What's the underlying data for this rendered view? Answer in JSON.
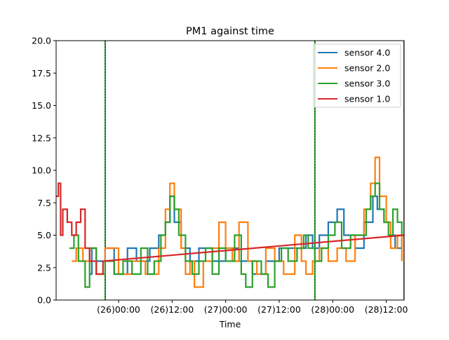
{
  "chart_data": {
    "type": "line",
    "title": "PM1 against  time",
    "xlabel": "Time",
    "ylabel": "",
    "xlim": [
      "2021-11-25 10:00",
      "2021-11-28 16:00"
    ],
    "ylim": [
      0,
      20
    ],
    "x_ticks": [
      {
        "t": "2021-11-26 00:00",
        "label": "(26)00:00"
      },
      {
        "t": "2021-11-26 12:00",
        "label": "(26)12:00"
      },
      {
        "t": "2021-11-27 00:00",
        "label": "(27)00:00"
      },
      {
        "t": "2021-11-27 12:00",
        "label": "(27)12:00"
      },
      {
        "t": "2021-11-28 00:00",
        "label": "(28)00:00"
      },
      {
        "t": "2021-11-28 12:00",
        "label": "(28)12:00"
      }
    ],
    "y_ticks": [
      {
        "v": 0,
        "label": "0.0"
      },
      {
        "v": 2.5,
        "label": "2.5"
      },
      {
        "v": 5,
        "label": "5.0"
      },
      {
        "v": 7.5,
        "label": "7.5"
      },
      {
        "v": 10,
        "label": "10.0"
      },
      {
        "v": 12.5,
        "label": "12.5"
      },
      {
        "v": 15,
        "label": "15.0"
      },
      {
        "v": 17.5,
        "label": "17.5"
      },
      {
        "v": 20,
        "label": "20.0"
      }
    ],
    "grid": false,
    "legend_position": "top-right",
    "series": [
      {
        "name": "sensor 4.0",
        "color": "#1f77b4",
        "points": [
          [
            "2021-11-25 17:30",
            2
          ],
          [
            "2021-11-25 18:00",
            4
          ],
          [
            "2021-11-25 19:00",
            3
          ],
          [
            "2021-11-25 21:00",
            4
          ],
          [
            "2021-11-25 23:00",
            2
          ],
          [
            "2021-11-26 02:00",
            4
          ],
          [
            "2021-11-26 04:00",
            3
          ],
          [
            "2021-11-26 07:00",
            4
          ],
          [
            "2021-11-26 09:00",
            5
          ],
          [
            "2021-11-26 10:30",
            6
          ],
          [
            "2021-11-26 11:30",
            8
          ],
          [
            "2021-11-26 12:30",
            6
          ],
          [
            "2021-11-26 14:00",
            4
          ],
          [
            "2021-11-26 16:00",
            3
          ],
          [
            "2021-11-26 18:00",
            4
          ],
          [
            "2021-11-26 21:00",
            3
          ],
          [
            "2021-11-27 00:00",
            4
          ],
          [
            "2021-11-27 03:00",
            3
          ],
          [
            "2021-11-27 06:00",
            2
          ],
          [
            "2021-11-27 09:00",
            3
          ],
          [
            "2021-11-27 12:00",
            4
          ],
          [
            "2021-11-27 15:00",
            4
          ],
          [
            "2021-11-27 18:00",
            5
          ],
          [
            "2021-11-27 19:30",
            4
          ],
          [
            "2021-11-27 21:00",
            5
          ],
          [
            "2021-11-27 23:00",
            6
          ],
          [
            "2021-11-28 01:00",
            7
          ],
          [
            "2021-11-28 02:30",
            5
          ],
          [
            "2021-11-28 05:00",
            4
          ],
          [
            "2021-11-28 07:00",
            6
          ],
          [
            "2021-11-28 09:00",
            8
          ],
          [
            "2021-11-28 10:00",
            7
          ],
          [
            "2021-11-28 11:30",
            6
          ],
          [
            "2021-11-28 13:00",
            5
          ],
          [
            "2021-11-28 14:00",
            4
          ],
          [
            "2021-11-28 15:30",
            5
          ]
        ]
      },
      {
        "name": "sensor 2.0",
        "color": "#ff7f0e",
        "points": [
          [
            "2021-11-25 13:30",
            3
          ],
          [
            "2021-11-25 14:30",
            4
          ],
          [
            "2021-11-25 16:00",
            3
          ],
          [
            "2021-11-25 17:30",
            4
          ],
          [
            "2021-11-25 19:00",
            2
          ],
          [
            "2021-11-25 21:00",
            4
          ],
          [
            "2021-11-26 00:00",
            2
          ],
          [
            "2021-11-26 03:00",
            3
          ],
          [
            "2021-11-26 06:00",
            2
          ],
          [
            "2021-11-26 09:00",
            4
          ],
          [
            "2021-11-26 10:30",
            7
          ],
          [
            "2021-11-26 11:30",
            9
          ],
          [
            "2021-11-26 12:30",
            7
          ],
          [
            "2021-11-26 14:00",
            4
          ],
          [
            "2021-11-26 15:00",
            2
          ],
          [
            "2021-11-26 16:00",
            3
          ],
          [
            "2021-11-26 17:00",
            1
          ],
          [
            "2021-11-26 19:00",
            3
          ],
          [
            "2021-11-26 21:00",
            4
          ],
          [
            "2021-11-26 22:30",
            6
          ],
          [
            "2021-11-27 00:00",
            4
          ],
          [
            "2021-11-27 01:30",
            3
          ],
          [
            "2021-11-27 03:00",
            6
          ],
          [
            "2021-11-27 05:00",
            3
          ],
          [
            "2021-11-27 07:00",
            2
          ],
          [
            "2021-11-27 09:00",
            4
          ],
          [
            "2021-11-27 11:00",
            3
          ],
          [
            "2021-11-27 13:00",
            2
          ],
          [
            "2021-11-27 15:30",
            5
          ],
          [
            "2021-11-27 17:00",
            3
          ],
          [
            "2021-11-27 18:00",
            2
          ],
          [
            "2021-11-27 19:30",
            3
          ],
          [
            "2021-11-27 21:00",
            4
          ],
          [
            "2021-11-27 23:00",
            3
          ],
          [
            "2021-11-28 01:00",
            4
          ],
          [
            "2021-11-28 03:00",
            3
          ],
          [
            "2021-11-28 05:00",
            5
          ],
          [
            "2021-11-28 07:00",
            7
          ],
          [
            "2021-11-28 08:30",
            9
          ],
          [
            "2021-11-28 09:30",
            11
          ],
          [
            "2021-11-28 10:30",
            8
          ],
          [
            "2021-11-28 12:00",
            6
          ],
          [
            "2021-11-28 13:00",
            4
          ],
          [
            "2021-11-28 14:30",
            5
          ],
          [
            "2021-11-28 15:30",
            3
          ]
        ]
      },
      {
        "name": "sensor 3.0",
        "color": "#2ca02c",
        "points": [
          [
            "2021-11-25 13:00",
            4
          ],
          [
            "2021-11-25 14:00",
            5
          ],
          [
            "2021-11-25 15:00",
            3
          ],
          [
            "2021-11-25 16:30",
            1
          ],
          [
            "2021-11-25 17:30",
            4
          ],
          [
            "2021-11-25 19:00",
            2
          ],
          [
            "2021-11-25 21:00",
            3
          ],
          [
            "2021-11-25 23:00",
            2
          ],
          [
            "2021-11-26 01:00",
            3
          ],
          [
            "2021-11-26 03:00",
            2
          ],
          [
            "2021-11-26 05:00",
            4
          ],
          [
            "2021-11-26 06:30",
            2
          ],
          [
            "2021-11-26 08:00",
            3
          ],
          [
            "2021-11-26 09:30",
            5
          ],
          [
            "2021-11-26 10:30",
            6
          ],
          [
            "2021-11-26 11:30",
            8
          ],
          [
            "2021-11-26 12:30",
            7
          ],
          [
            "2021-11-26 13:30",
            5
          ],
          [
            "2021-11-26 15:00",
            3
          ],
          [
            "2021-11-26 16:30",
            2
          ],
          [
            "2021-11-26 18:00",
            3
          ],
          [
            "2021-11-26 19:30",
            4
          ],
          [
            "2021-11-26 21:00",
            2
          ],
          [
            "2021-11-26 22:30",
            4
          ],
          [
            "2021-11-27 00:00",
            3
          ],
          [
            "2021-11-27 02:00",
            5
          ],
          [
            "2021-11-27 03:30",
            2
          ],
          [
            "2021-11-27 04:30",
            1
          ],
          [
            "2021-11-27 06:00",
            3
          ],
          [
            "2021-11-27 08:00",
            2
          ],
          [
            "2021-11-27 09:30",
            1
          ],
          [
            "2021-11-27 11:00",
            3
          ],
          [
            "2021-11-27 12:30",
            4
          ],
          [
            "2021-11-27 14:00",
            3
          ],
          [
            "2021-11-27 16:00",
            4
          ],
          [
            "2021-11-27 17:30",
            5
          ],
          [
            "2021-11-27 18:30",
            4
          ],
          [
            "2021-11-27 20:00",
            3
          ],
          [
            "2021-11-27 21:30",
            4
          ],
          [
            "2021-11-27 23:00",
            5
          ],
          [
            "2021-11-28 00:30",
            6
          ],
          [
            "2021-11-28 02:00",
            4
          ],
          [
            "2021-11-28 04:00",
            5
          ],
          [
            "2021-11-28 06:00",
            5
          ],
          [
            "2021-11-28 07:30",
            7
          ],
          [
            "2021-11-28 08:30",
            8
          ],
          [
            "2021-11-28 09:30",
            9
          ],
          [
            "2021-11-28 10:30",
            7
          ],
          [
            "2021-11-28 11:30",
            6
          ],
          [
            "2021-11-28 12:30",
            5
          ],
          [
            "2021-11-28 13:30",
            7
          ],
          [
            "2021-11-28 14:30",
            6
          ],
          [
            "2021-11-28 15:30",
            5
          ]
        ]
      },
      {
        "name": "sensor 1.0",
        "color": "#d62728",
        "points": [
          [
            "2021-11-25 10:00",
            8
          ],
          [
            "2021-11-25 10:30",
            9
          ],
          [
            "2021-11-25 11:00",
            5
          ],
          [
            "2021-11-25 11:30",
            7
          ],
          [
            "2021-11-25 12:30",
            6
          ],
          [
            "2021-11-25 13:30",
            5
          ],
          [
            "2021-11-25 14:30",
            6
          ],
          [
            "2021-11-25 15:30",
            7
          ],
          [
            "2021-11-25 16:30",
            4
          ],
          [
            "2021-11-25 17:30",
            3
          ],
          [
            "2021-11-25 19:00",
            2
          ],
          [
            "2021-11-25 20:30",
            3
          ],
          [
            "2021-11-28 16:00",
            5
          ]
        ]
      }
    ],
    "vertical_lines": [
      {
        "t": "2021-11-25 21:00",
        "color": "#2ca02c",
        "style": "solid"
      },
      {
        "t": "2021-11-25 21:00",
        "color": "#006400",
        "style": "dotted"
      },
      {
        "t": "2021-11-27 20:00",
        "color": "#2ca02c",
        "style": "solid"
      },
      {
        "t": "2021-11-27 20:00",
        "color": "#006400",
        "style": "dotted"
      },
      {
        "t": "2021-11-28 16:00",
        "color": "#d62728",
        "style": "solid"
      },
      {
        "t": "2021-11-28 16:00",
        "color": "#8b0000",
        "style": "dotted"
      }
    ]
  }
}
